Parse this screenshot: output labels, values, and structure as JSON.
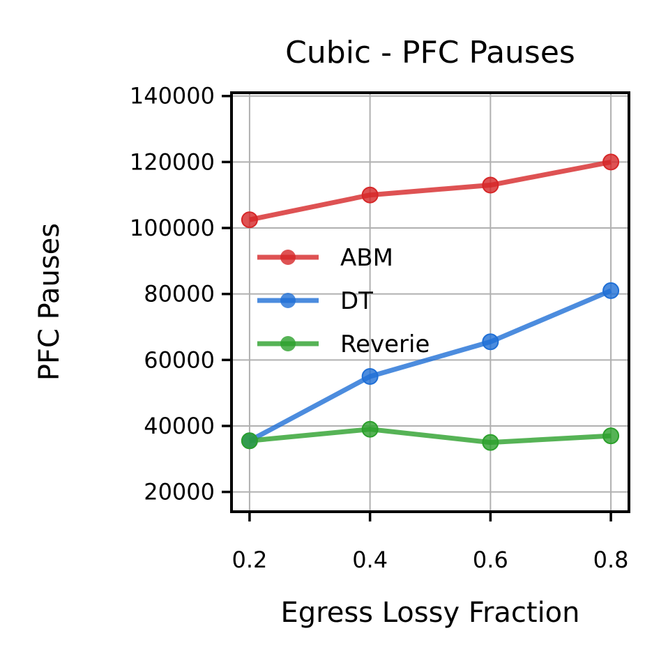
{
  "chart_data": {
    "type": "line",
    "title": "Cubic - PFC Pauses",
    "xlabel": "Egress Lossy Fraction",
    "ylabel": "PFC Pauses",
    "x": [
      0.2,
      0.4,
      0.6,
      0.8
    ],
    "x_tick_labels": [
      "0.2",
      "0.4",
      "0.6",
      "0.8"
    ],
    "xlim": [
      0.17,
      0.83
    ],
    "y_ticks": [
      20000,
      40000,
      60000,
      80000,
      100000,
      120000,
      140000
    ],
    "y_tick_labels": [
      "20000",
      "40000",
      "60000",
      "80000",
      "100000",
      "120000",
      "140000"
    ],
    "ylim": [
      14000,
      141000
    ],
    "grid": true,
    "legend_position": "center-left",
    "series": [
      {
        "name": "ABM",
        "values": [
          102500,
          110000,
          113000,
          120000
        ],
        "color": "#d62728"
      },
      {
        "name": "DT",
        "values": [
          35500,
          55000,
          65500,
          81000
        ],
        "color": "#1f6fd6"
      },
      {
        "name": "Reverie",
        "values": [
          35500,
          39000,
          35000,
          37000
        ],
        "color": "#2ca02c"
      }
    ]
  }
}
